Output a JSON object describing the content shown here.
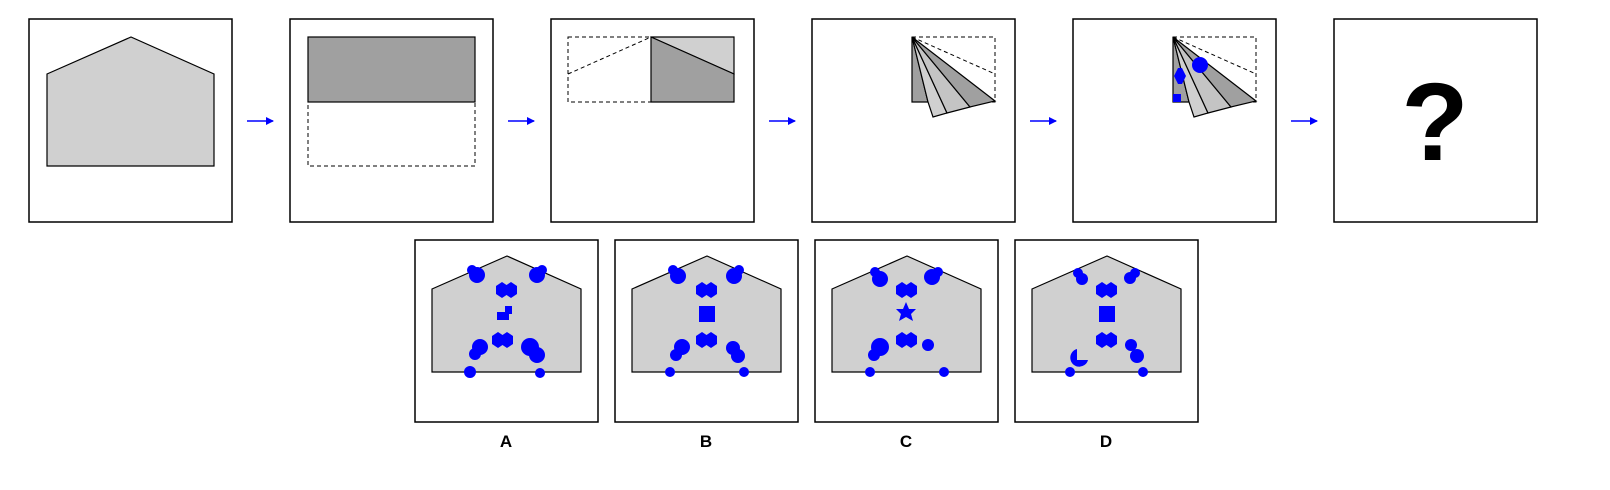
{
  "puzzle": {
    "question_mark": "?",
    "options": [
      {
        "label": "A"
      },
      {
        "label": "B"
      },
      {
        "label": "C"
      },
      {
        "label": "D"
      }
    ]
  },
  "colors": {
    "paper": "#d0d0d0",
    "paper_folded": "#a0a0a0",
    "paper_mid": "#c4c4c4",
    "punch": "#0000ff",
    "arrow": "#0000ff",
    "frame": "#000000"
  }
}
